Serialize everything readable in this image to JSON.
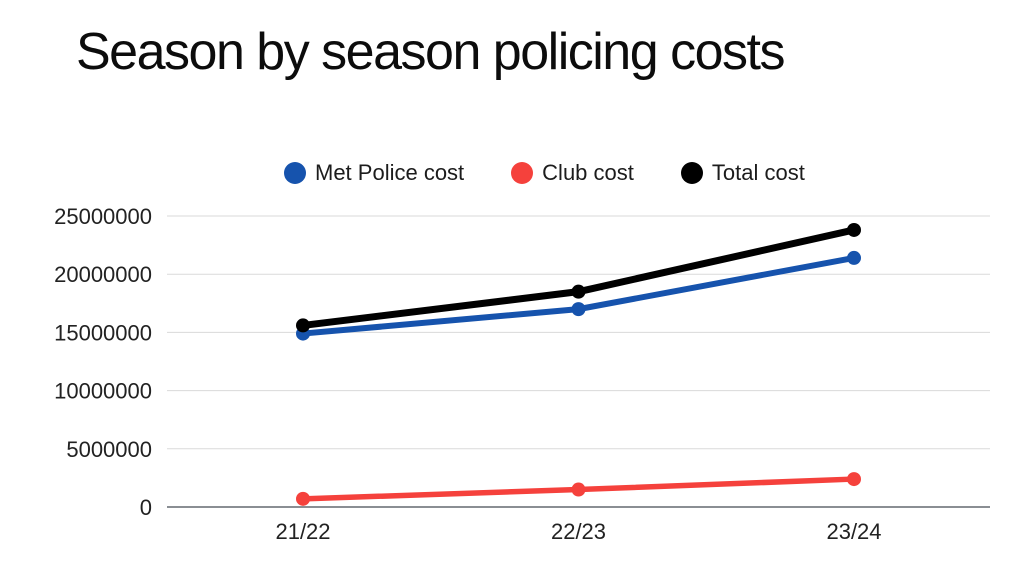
{
  "title": "Season by season policing costs",
  "legend_position": "top",
  "chart_data": {
    "type": "line",
    "title": "Season by season policing costs",
    "categories": [
      "21/22",
      "22/23",
      "23/24"
    ],
    "series": [
      {
        "name": "Met Police cost",
        "color": "#1653ad",
        "values": [
          14900000,
          17000000,
          21400000
        ]
      },
      {
        "name": "Club cost",
        "color": "#f5413c",
        "values": [
          700000,
          1500000,
          2400000
        ]
      },
      {
        "name": "Total cost",
        "color": "#000000",
        "values": [
          15600000,
          18500000,
          23800000
        ]
      }
    ],
    "xlabel": "",
    "ylabel": "",
    "ylim": [
      0,
      25000000
    ],
    "yticks": [
      0,
      5000000,
      10000000,
      15000000,
      20000000,
      25000000
    ],
    "grid": true,
    "legend_position": "top"
  }
}
